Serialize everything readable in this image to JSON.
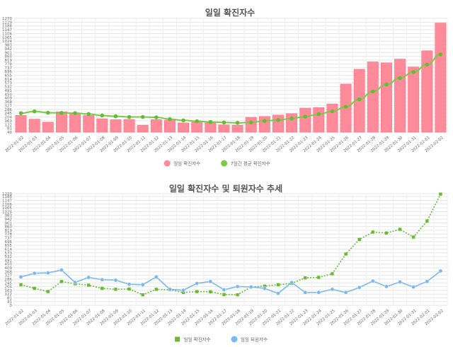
{
  "chart_data": [
    {
      "type": "bar",
      "title": "일일 확진자수",
      "legend_position": "bottom",
      "grid": true,
      "ylim": [
        40,
        1270
      ],
      "y_ticks": [
        40,
        81,
        122,
        163,
        204,
        245,
        286,
        327,
        368,
        409,
        450,
        491,
        532,
        573,
        614,
        655,
        696,
        737,
        778,
        819,
        860,
        901,
        942,
        983,
        1024,
        1065,
        1106,
        1147,
        1188,
        1229,
        1270
      ],
      "categories": [
        "2022-01-02",
        "2022-01-03",
        "2022-01-04",
        "2022-01-05",
        "2022-01-06",
        "2022-01-07",
        "2022-01-08",
        "2022-01-09",
        "2022-01-10",
        "2022-01-11",
        "2022-01-12",
        "2022-01-13",
        "2022-01-14",
        "2022-01-15",
        "2022-01-16",
        "2022-01-17",
        "2022-01-18",
        "2022-01-19",
        "2022-01-20",
        "2022-01-21",
        "2022-01-22",
        "2022-01-23",
        "2022-01-24",
        "2022-01-25",
        "2022-01-26",
        "2022-01-27",
        "2022-01-28",
        "2022-01-29",
        "2022-01-30",
        "2022-01-31",
        "2022-02-01",
        "2022-02-02"
      ],
      "series": [
        {
          "name": "일일 확진자수",
          "kind": "bar",
          "color": "#ff8a9a",
          "border": "#ff6f82",
          "values": [
            222,
            180,
            148,
            260,
            240,
            220,
            185,
            175,
            178,
            115,
            175,
            170,
            140,
            150,
            148,
            118,
            115,
            200,
            210,
            225,
            240,
            300,
            305,
            345,
            560,
            720,
            800,
            790,
            830,
            745,
            920,
            1220
          ]
        },
        {
          "name": "7일간 평균 확진자수",
          "kind": "line",
          "color": "#77cc44",
          "point_color": "#66bb33",
          "values": [
            245,
            265,
            250,
            248,
            246,
            236,
            220,
            212,
            204,
            204,
            200,
            181,
            168,
            158,
            150,
            145,
            141,
            145,
            161,
            171,
            188,
            208,
            235,
            265,
            315,
            395,
            480,
            555,
            625,
            690,
            770,
            880
          ]
        }
      ]
    },
    {
      "type": "line",
      "title": "일일 확진자수 및 퇴원자수 추세",
      "legend_position": "bottom",
      "grid": true,
      "ylim": [
        0,
        1220
      ],
      "y_ticks": [
        0,
        41,
        81,
        122,
        163,
        204,
        245,
        286,
        327,
        368,
        409,
        450,
        491,
        532,
        573,
        614,
        655,
        696,
        737,
        778,
        819,
        860,
        901,
        942,
        983,
        1024,
        1065,
        1106,
        1147,
        1188,
        1220
      ],
      "categories": [
        "2022-01-02",
        "2022-01-03",
        "2022-01-04",
        "2022-01-05",
        "2022-01-06",
        "2022-01-07",
        "2022-01-08",
        "2022-01-09",
        "2022-01-10",
        "2022-01-11",
        "2022-01-12",
        "2022-01-13",
        "2022-01-14",
        "2022-01-15",
        "2022-01-16",
        "2022-01-17",
        "2022-01-18",
        "2022-01-19",
        "2022-01-20",
        "2022-01-21",
        "2022-01-22",
        "2022-01-23",
        "2022-01-24",
        "2022-01-25",
        "2022-01-26",
        "2022-01-27",
        "2022-01-28",
        "2022-01-29",
        "2022-01-30",
        "2022-01-31",
        "2022-02-01",
        "2022-02-02"
      ],
      "series": [
        {
          "name": "일일 확진자수",
          "kind": "dotted-square",
          "color": "#66bb33",
          "values": [
            225,
            185,
            150,
            260,
            235,
            220,
            185,
            175,
            178,
            115,
            175,
            170,
            140,
            150,
            148,
            118,
            115,
            200,
            210,
            225,
            240,
            300,
            305,
            345,
            560,
            720,
            800,
            790,
            830,
            745,
            920,
            1215
          ]
        },
        {
          "name": "일일 퇴원자수",
          "kind": "solid-circle",
          "color": "#7ab8ee",
          "values": [
            310,
            350,
            355,
            385,
            250,
            305,
            280,
            275,
            230,
            225,
            310,
            175,
            165,
            240,
            260,
            170,
            205,
            200,
            185,
            130,
            250,
            140,
            140,
            175,
            140,
            195,
            265,
            205,
            255,
            200,
            260,
            375
          ]
        }
      ]
    }
  ]
}
